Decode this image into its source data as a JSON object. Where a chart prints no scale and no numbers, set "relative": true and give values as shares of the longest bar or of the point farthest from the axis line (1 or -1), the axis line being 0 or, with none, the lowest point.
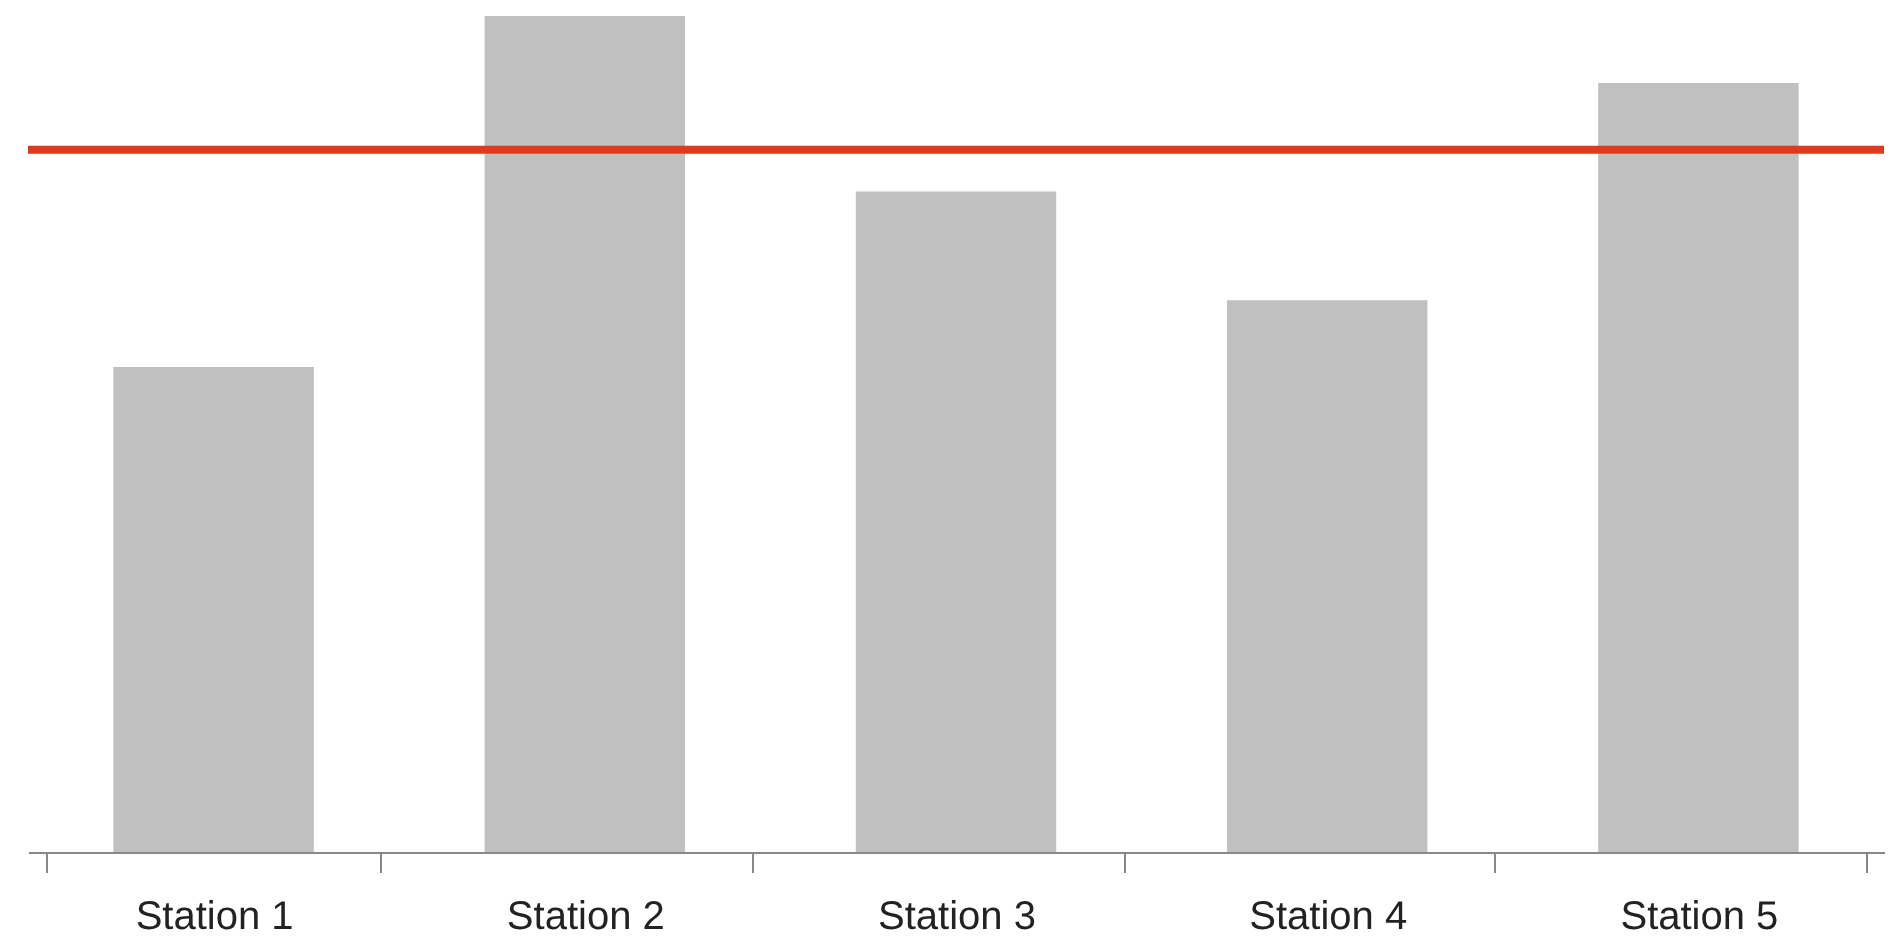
{
  "chart_data": {
    "type": "bar",
    "relative": true,
    "categories": [
      "Station 1",
      "Station 2",
      "Station 3",
      "Station 4",
      "Station 5"
    ],
    "values": [
      0.58,
      1,
      0.79,
      0.66,
      0.92
    ],
    "color": "#c0c0c0",
    "ref_lines": [
      {
        "axis": "y",
        "value": 0.84,
        "color": "#e03a1e"
      }
    ],
    "grid": false
  }
}
